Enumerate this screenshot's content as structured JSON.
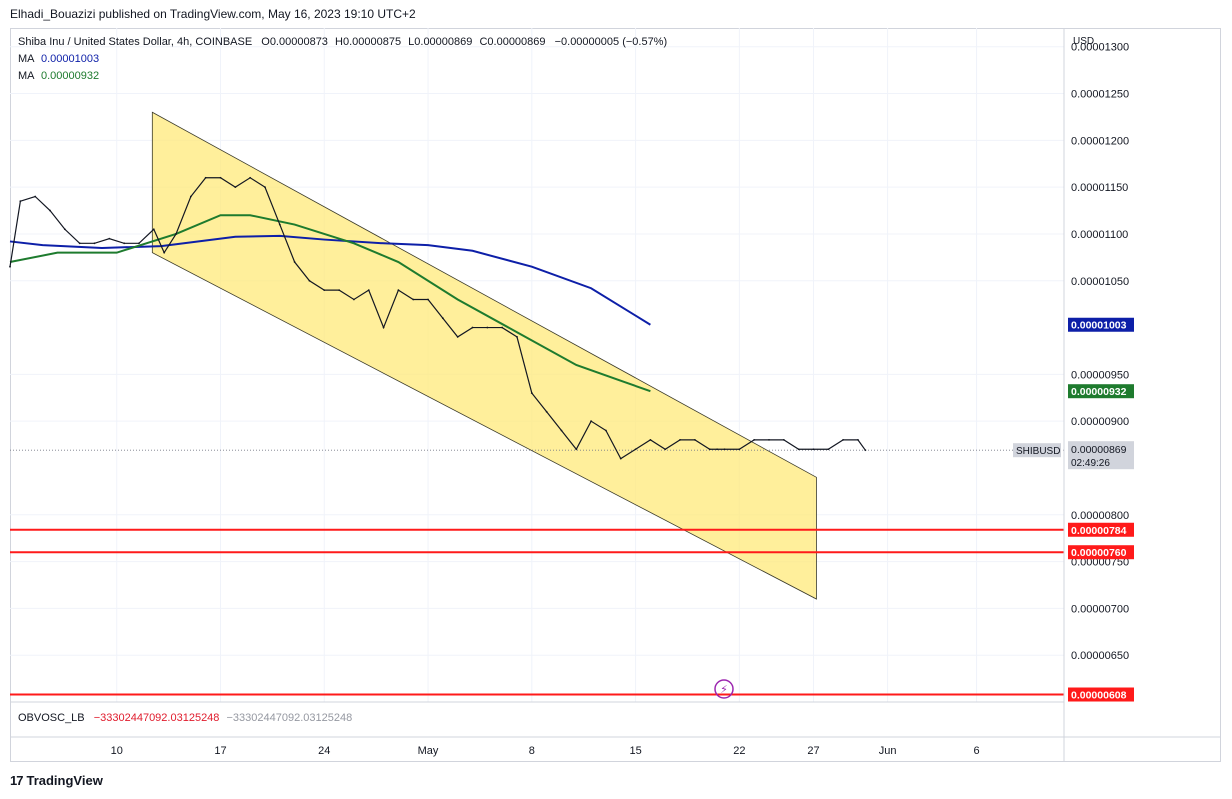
{
  "header": {
    "publisher": "Elhadi_Bouazizi published on TradingView.com, May 16, 2023 19:10 UTC+2"
  },
  "legend": {
    "symbol": "Shiba Inu / United States Dollar, 4h, COINBASE",
    "o_label": "O",
    "o_value": "0.00000873",
    "h_label": "H",
    "h_value": "0.00000875",
    "l_label": "L",
    "l_value": "0.00000869",
    "c_label": "C",
    "c_value": "0.00000869",
    "change": "−0.00000005 (−0.57%)",
    "ma1_label": "MA",
    "ma1_value": "0.00001003",
    "ma2_label": "MA",
    "ma2_value": "0.00000932"
  },
  "indicator": {
    "name": "OBVOSC_LB",
    "value1": "−33302447092.03125248",
    "value2": "−33302447092.03125248"
  },
  "footer": {
    "brand": "TradingView"
  },
  "colors": {
    "ma1": "#0d1fa8",
    "ma2": "#1e7b2e",
    "channel": "#ffe97a",
    "levels": "#ff1a1a",
    "price": "#787b86"
  },
  "chart_data": {
    "type": "line",
    "currency_label": "USD",
    "symbol_tag": "SHIBUSD",
    "countdown": "02:49:26",
    "y_ticks": [
      "0.00001300",
      "0.00001250",
      "0.00001200",
      "0.00001150",
      "0.00001100",
      "0.00001050",
      "0.00000950",
      "0.00000900",
      "0.00000800",
      "0.00000750",
      "0.00000700",
      "0.00000650"
    ],
    "y_tick_values": [
      1.3e-05,
      1.25e-05,
      1.2e-05,
      1.15e-05,
      1.1e-05,
      1.05e-05,
      9.5e-06,
      9e-06,
      8e-06,
      7.5e-06,
      7e-06,
      6.5e-06
    ],
    "x_ticks": [
      "10",
      "17",
      "24",
      "May",
      "8",
      "15",
      "22",
      "27",
      "Jun",
      "6"
    ],
    "x_tick_days": [
      10,
      17,
      24,
      31,
      38,
      45,
      52,
      57,
      62,
      68
    ],
    "x_range_days": [
      2.8,
      73.9
    ],
    "y_range": [
      6e-06,
      1.32e-05
    ],
    "last_price": {
      "label": "0.00000869",
      "value": 8.69e-06
    },
    "horizontal_levels": [
      {
        "label": "0.00000784",
        "value": 7.84e-06
      },
      {
        "label": "0.00000760",
        "value": 7.6e-06
      },
      {
        "label": "0.00000608",
        "value": 6.08e-06
      }
    ],
    "ma_series": [
      {
        "label": "0.00001003",
        "last": 1.003e-05,
        "points": [
          [
            2.8,
            1.092e-05
          ],
          [
            5,
            1.088e-05
          ],
          [
            9,
            1.085e-05
          ],
          [
            13,
            1.087e-05
          ],
          [
            18,
            1.097e-05
          ],
          [
            21,
            1.098e-05
          ],
          [
            24,
            1.094e-05
          ],
          [
            28,
            1.09e-05
          ],
          [
            31,
            1.088e-05
          ],
          [
            34,
            1.082e-05
          ],
          [
            38,
            1.065e-05
          ],
          [
            42,
            1.042e-05
          ],
          [
            46,
            1.003e-05
          ]
        ]
      },
      {
        "label": "0.00000932",
        "last": 9.32e-06,
        "points": [
          [
            2.8,
            1.07e-05
          ],
          [
            6,
            1.08e-05
          ],
          [
            10,
            1.08e-05
          ],
          [
            14,
            1.1e-05
          ],
          [
            17,
            1.12e-05
          ],
          [
            19,
            1.12e-05
          ],
          [
            22,
            1.11e-05
          ],
          [
            26,
            1.09e-05
          ],
          [
            29,
            1.07e-05
          ],
          [
            33,
            1.03e-05
          ],
          [
            37,
            9.95e-06
          ],
          [
            41,
            9.6e-06
          ],
          [
            46,
            9.32e-06
          ]
        ]
      }
    ],
    "price_series": [
      [
        2.8,
        1.065e-05
      ],
      [
        3.5,
        1.135e-05
      ],
      [
        4.5,
        1.14e-05
      ],
      [
        5.5,
        1.125e-05
      ],
      [
        6.5,
        1.105e-05
      ],
      [
        7.5,
        1.09e-05
      ],
      [
        8.5,
        1.09e-05
      ],
      [
        9.5,
        1.095e-05
      ],
      [
        10.5,
        1.09e-05
      ],
      [
        11.5,
        1.09e-05
      ],
      [
        12.5,
        1.105e-05
      ],
      [
        13.2,
        1.08e-05
      ],
      [
        14,
        1.1e-05
      ],
      [
        15,
        1.14e-05
      ],
      [
        16,
        1.16e-05
      ],
      [
        17,
        1.16e-05
      ],
      [
        18,
        1.15e-05
      ],
      [
        19,
        1.16e-05
      ],
      [
        20,
        1.15e-05
      ],
      [
        21,
        1.11e-05
      ],
      [
        22,
        1.07e-05
      ],
      [
        23,
        1.05e-05
      ],
      [
        24,
        1.04e-05
      ],
      [
        25,
        1.04e-05
      ],
      [
        26,
        1.03e-05
      ],
      [
        27,
        1.04e-05
      ],
      [
        28,
        1e-05
      ],
      [
        29,
        1.04e-05
      ],
      [
        30,
        1.03e-05
      ],
      [
        31,
        1.03e-05
      ],
      [
        32,
        1.01e-05
      ],
      [
        33,
        9.9e-06
      ],
      [
        34,
        1e-05
      ],
      [
        35,
        1e-05
      ],
      [
        36,
        1e-05
      ],
      [
        37,
        9.9e-06
      ],
      [
        38,
        9.3e-06
      ],
      [
        39,
        9.1e-06
      ],
      [
        40,
        8.9e-06
      ],
      [
        41,
        8.7e-06
      ],
      [
        42,
        9e-06
      ],
      [
        43,
        8.9e-06
      ],
      [
        44,
        8.6e-06
      ],
      [
        45,
        8.7e-06
      ],
      [
        46,
        8.8e-06
      ],
      [
        47,
        8.7e-06
      ],
      [
        48,
        8.8e-06
      ],
      [
        49,
        8.8e-06
      ],
      [
        50,
        8.7e-06
      ],
      [
        50.5,
        8.7e-06
      ],
      [
        51,
        8.7e-06
      ],
      [
        52,
        8.7e-06
      ],
      [
        53,
        8.8e-06
      ],
      [
        54,
        8.8e-06
      ],
      [
        55,
        8.8e-06
      ],
      [
        56,
        8.7e-06
      ],
      [
        57,
        8.7e-06
      ],
      [
        58,
        8.7e-06
      ],
      [
        59,
        8.8e-06
      ],
      [
        60,
        8.8e-06
      ],
      [
        60.5,
        8.69e-06
      ]
    ],
    "channel": {
      "upper": [
        [
          12.4,
          1.23e-05
        ],
        [
          57.2,
          8.4e-06
        ]
      ],
      "lower": [
        [
          12.4,
          1.08e-05
        ],
        [
          57.2,
          7.1e-06
        ]
      ]
    }
  }
}
